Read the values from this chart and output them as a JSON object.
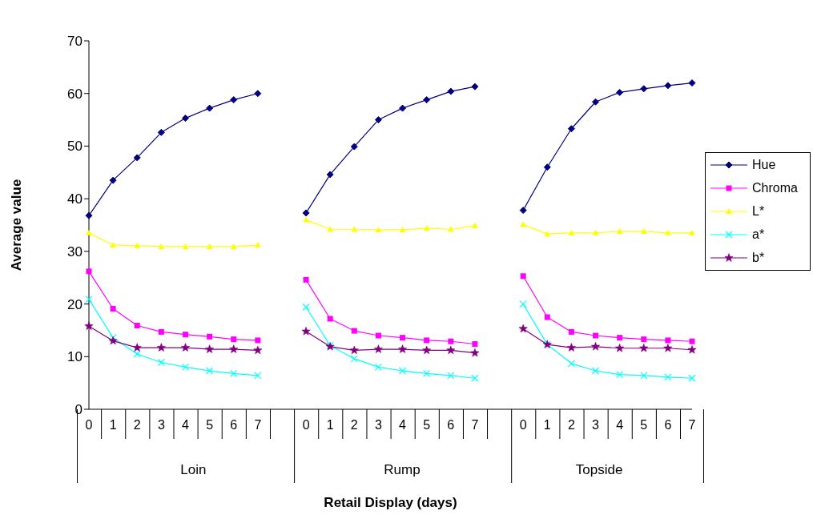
{
  "chart_data": {
    "type": "line",
    "xlabel": "Retail Display (days)",
    "ylabel": "Average value",
    "categories": [
      "0",
      "1",
      "2",
      "3",
      "4",
      "5",
      "6",
      "7",
      null,
      "0",
      "1",
      "2",
      "3",
      "4",
      "5",
      "6",
      "7",
      null,
      "0",
      "1",
      "2",
      "3",
      "4",
      "5",
      "6",
      "7"
    ],
    "annotations": [
      "Loin",
      "Rump",
      "Topside"
    ],
    "ylim": [
      0,
      70
    ],
    "yticks": [
      0,
      10,
      20,
      30,
      40,
      50,
      60,
      70
    ],
    "grid": false,
    "legend": "right",
    "line_style": "solid",
    "series": [
      {
        "name": "Hue",
        "color": "#000080",
        "marker": "diamond",
        "values": [
          36.8,
          43.5,
          47.8,
          52.6,
          55.3,
          57.2,
          58.8,
          60.0,
          null,
          37.3,
          44.6,
          49.9,
          55.0,
          57.2,
          58.8,
          60.4,
          61.3,
          null,
          37.8,
          46.0,
          53.3,
          58.4,
          60.2,
          60.9,
          61.5,
          62.0
        ]
      },
      {
        "name": "Chroma",
        "color": "#ff00ff",
        "marker": "square",
        "values": [
          26.2,
          19.1,
          15.9,
          14.7,
          14.2,
          13.8,
          13.3,
          13.1,
          null,
          24.6,
          17.2,
          14.9,
          14.0,
          13.6,
          13.1,
          12.9,
          12.4,
          null,
          25.3,
          17.5,
          14.7,
          14.0,
          13.6,
          13.3,
          13.1,
          12.9
        ]
      },
      {
        "name": "L*",
        "color": "#ffff00",
        "marker": "triangle",
        "values": [
          33.5,
          31.2,
          31.1,
          30.9,
          30.9,
          30.9,
          30.9,
          31.2,
          null,
          36.0,
          34.2,
          34.2,
          34.1,
          34.1,
          34.4,
          34.2,
          34.9,
          null,
          35.1,
          33.3,
          33.5,
          33.5,
          33.8,
          33.8,
          33.5,
          33.5
        ]
      },
      {
        "name": "a*",
        "color": "#00ffff",
        "marker": "cross",
        "values": [
          20.9,
          13.6,
          10.5,
          8.9,
          8.0,
          7.3,
          6.8,
          6.4,
          null,
          19.4,
          12.1,
          9.6,
          8.0,
          7.3,
          6.8,
          6.4,
          5.9,
          null,
          20.0,
          12.3,
          8.7,
          7.3,
          6.6,
          6.4,
          6.1,
          5.9
        ]
      },
      {
        "name": "b*",
        "color": "#800080",
        "marker": "star",
        "values": [
          15.8,
          13.0,
          11.7,
          11.7,
          11.7,
          11.4,
          11.4,
          11.2,
          null,
          14.8,
          11.9,
          11.2,
          11.4,
          11.4,
          11.2,
          11.2,
          10.7,
          null,
          15.3,
          12.3,
          11.7,
          11.9,
          11.6,
          11.6,
          11.6,
          11.3
        ]
      }
    ]
  }
}
